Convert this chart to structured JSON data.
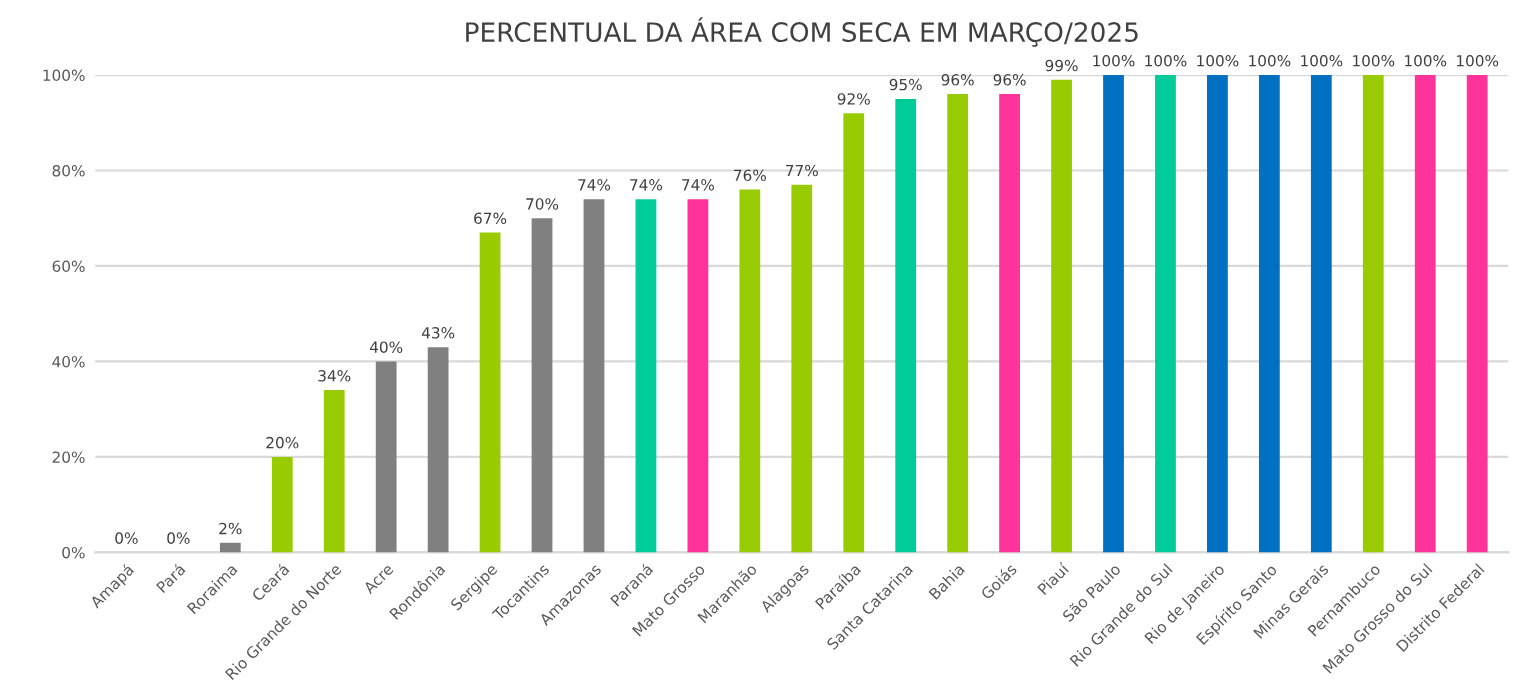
{
  "chart_data": {
    "type": "bar",
    "title": "PERCENTUAL DA ÁREA COM SECA EM MARÇO/2025",
    "categories": [
      "Amapá",
      "Pará",
      "Roraima",
      "Ceará",
      "Rio Grande do Norte",
      "Acre",
      "Rondônia",
      "Sergipe",
      "Tocantins",
      "Amazonas",
      "Paraná",
      "Mato Grosso",
      "Maranhão",
      "Alagoas",
      "Paraíba",
      "Santa Catarina",
      "Bahia",
      "Goiás",
      "Piauí",
      "São Paulo",
      "Rio Grande do Sul",
      "Rio de Janeiro",
      "Espírito Santo",
      "Minas Gerais",
      "Pernambuco",
      "Mato Grosso do Sul",
      "Distrito Federal"
    ],
    "values": [
      0,
      0,
      2,
      20,
      34,
      40,
      43,
      67,
      70,
      74,
      74,
      74,
      76,
      77,
      92,
      95,
      96,
      96,
      99,
      100,
      100,
      100,
      100,
      100,
      100,
      100,
      100
    ],
    "value_labels": [
      "0%",
      "0%",
      "2%",
      "20%",
      "34%",
      "40%",
      "43%",
      "67%",
      "70%",
      "74%",
      "74%",
      "74%",
      "76%",
      "77%",
      "92%",
      "95%",
      "96%",
      "96%",
      "99%",
      "100%",
      "100%",
      "100%",
      "100%",
      "100%",
      "100%",
      "100%",
      "100%"
    ],
    "colors": [
      "#808080",
      "#808080",
      "#808080",
      "#99cc00",
      "#99cc00",
      "#808080",
      "#808080",
      "#99cc00",
      "#808080",
      "#808080",
      "#00cc99",
      "#ff3399",
      "#99cc00",
      "#99cc00",
      "#99cc00",
      "#00cc99",
      "#99cc00",
      "#ff3399",
      "#99cc00",
      "#0070c0",
      "#00cc99",
      "#0070c0",
      "#0070c0",
      "#0070c0",
      "#99cc00",
      "#ff3399",
      "#ff3399"
    ],
    "ylim": [
      0,
      100
    ],
    "yticks": [
      {
        "value": 0,
        "label": "0%"
      },
      {
        "value": 20,
        "label": "20%"
      },
      {
        "value": 40,
        "label": "40%"
      },
      {
        "value": 60,
        "label": "60%"
      },
      {
        "value": 80,
        "label": "80%"
      },
      {
        "value": 100,
        "label": "100%"
      }
    ],
    "grid": "y",
    "legend": false
  }
}
